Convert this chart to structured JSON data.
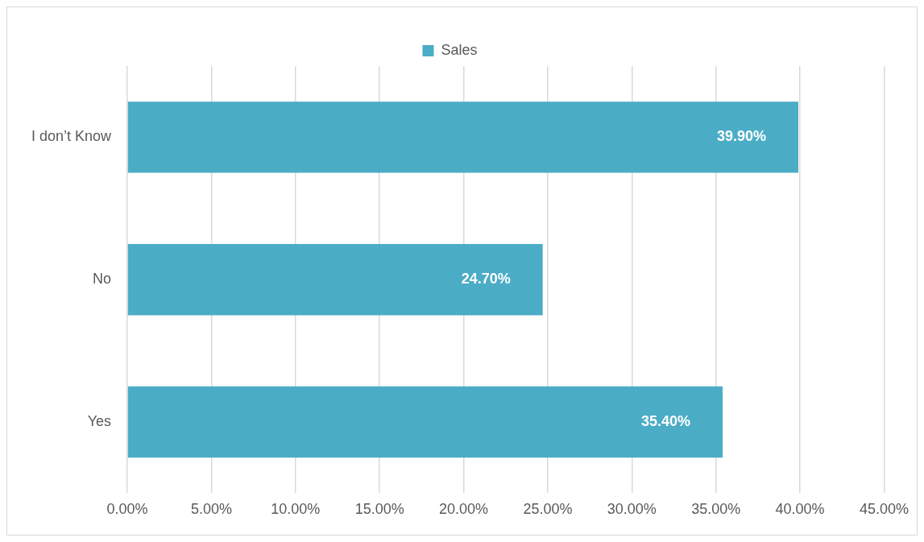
{
  "chart_data": {
    "type": "bar",
    "orientation": "horizontal",
    "categories": [
      "I don’t Know",
      "No",
      "Yes"
    ],
    "series": [
      {
        "name": "Sales",
        "color": "#4bacc6",
        "values": [
          39.9,
          24.7,
          35.4
        ],
        "value_labels": [
          "39.90%",
          "24.70%",
          "35.40%"
        ]
      }
    ],
    "xlim": [
      0,
      45
    ],
    "xticks": [
      {
        "value": 0,
        "label": "0.00%"
      },
      {
        "value": 5,
        "label": "5.00%"
      },
      {
        "value": 10,
        "label": "10.00%"
      },
      {
        "value": 15,
        "label": "15.00%"
      },
      {
        "value": 20,
        "label": "20.00%"
      },
      {
        "value": 25,
        "label": "25.00%"
      },
      {
        "value": 30,
        "label": "30.00%"
      },
      {
        "value": 35,
        "label": "35.00%"
      },
      {
        "value": 40,
        "label": "40.00%"
      },
      {
        "value": 45,
        "label": "45.00%"
      }
    ],
    "grid": "x",
    "legend": "top"
  }
}
